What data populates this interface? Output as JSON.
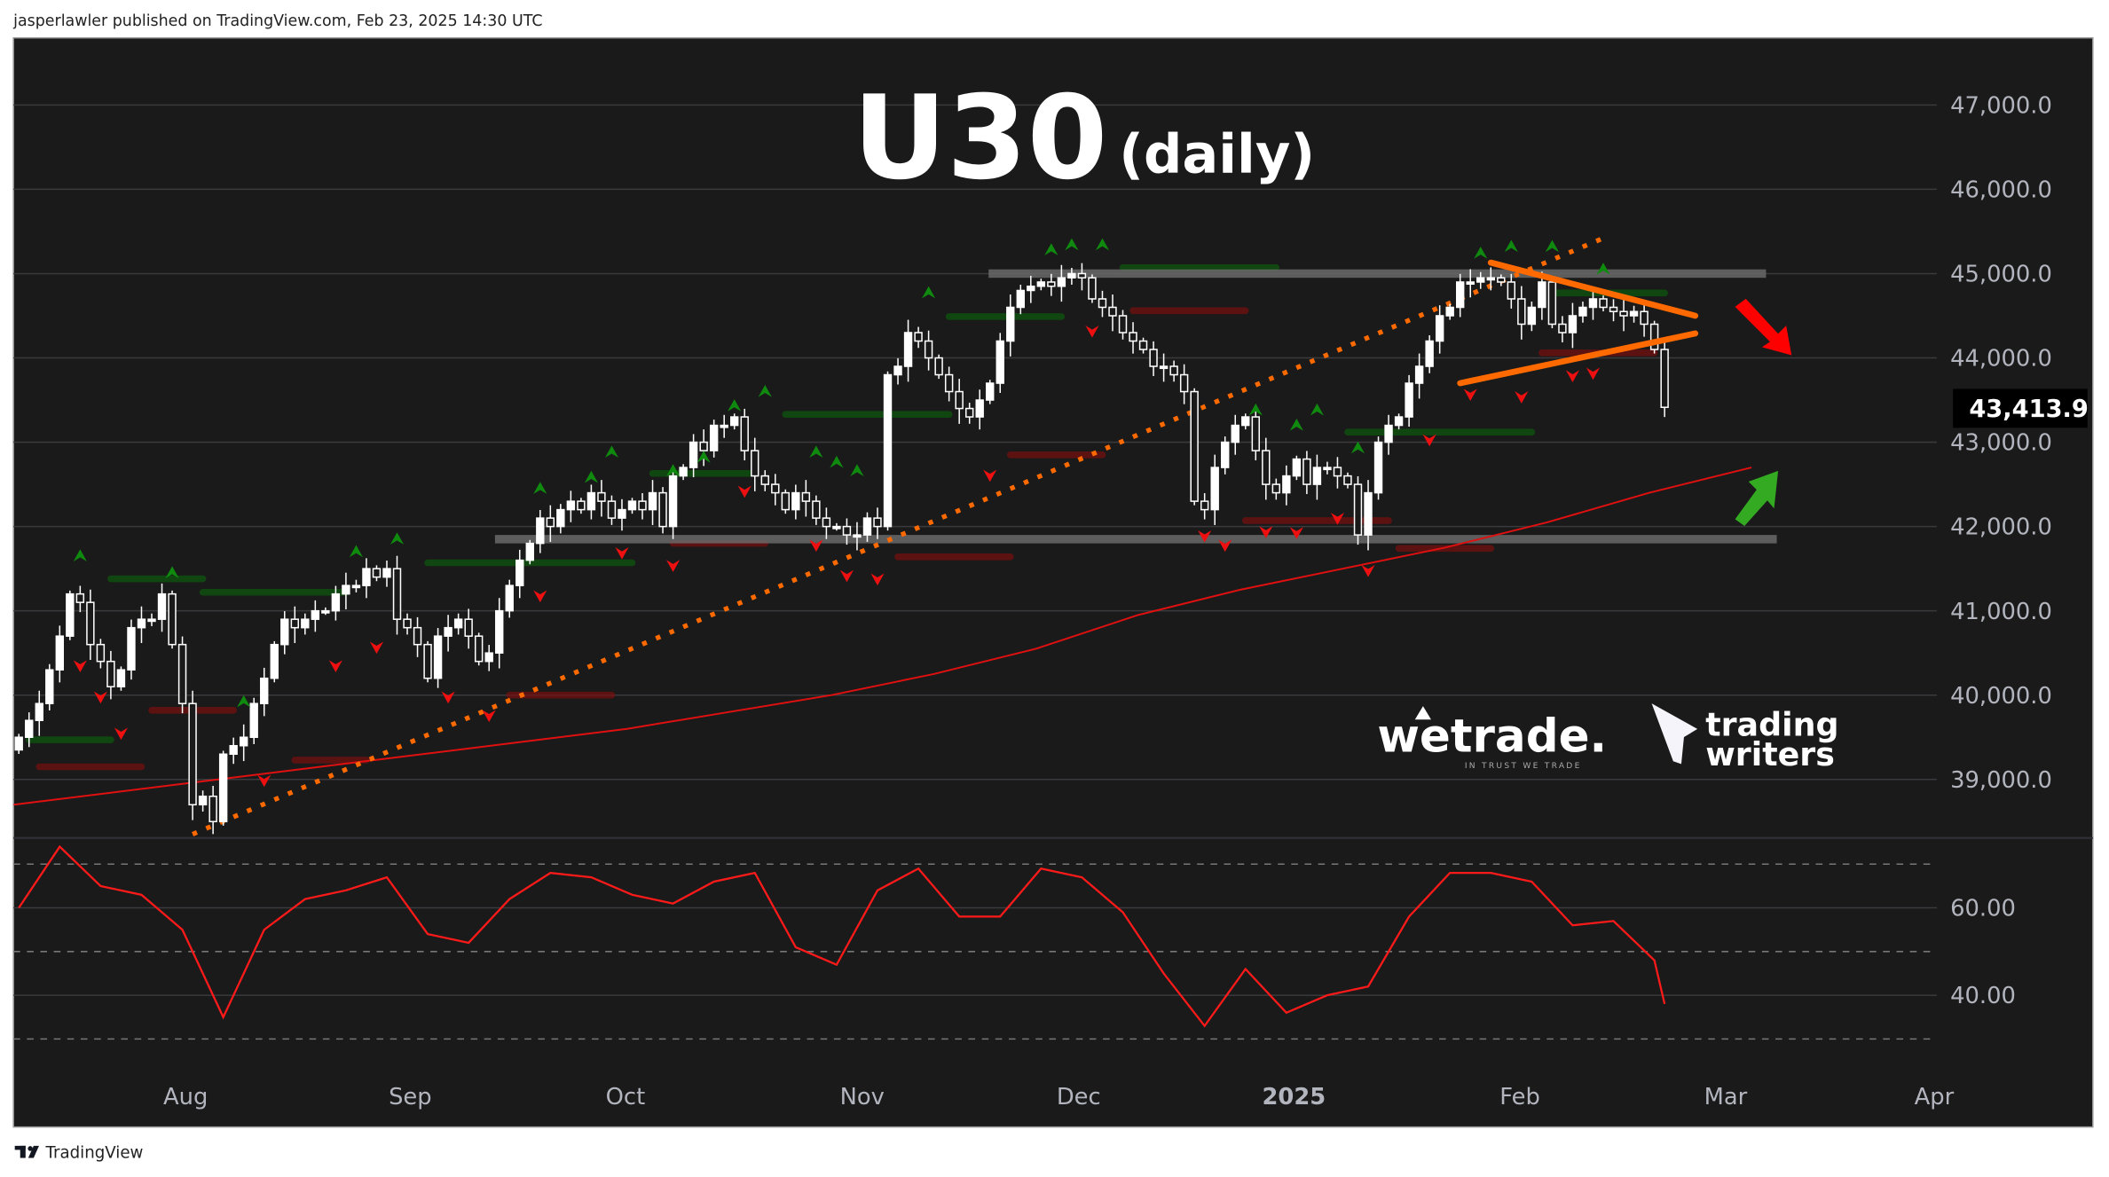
{
  "header": {
    "text": "jasperlawler published on TradingView.com, Feb 23, 2025 14:30 UTC"
  },
  "footer": {
    "brand": "TradingView",
    "icon": "tradingview-logo-icon"
  },
  "title": {
    "symbol": "U30",
    "timeframe": "(daily)"
  },
  "logos": {
    "wetrade": "wetrade.",
    "wetrade_tagline": "IN TRUST WE TRADE",
    "trading_writers_1": "trading",
    "trading_writers_2": "writers"
  },
  "colors": {
    "background": "#1a1a1a",
    "candle": "#ffffff",
    "ma": "#e01010",
    "rsi": "#ff1a1a",
    "trendline": "#ff6a00",
    "zone": "#6a6a6a",
    "arrow_down": "#ff0000",
    "arrow_up": "#33aa22",
    "signal_up": "#0f8a0f",
    "signal_down": "#e01010"
  },
  "chart_data": [
    {
      "type": "candlestick",
      "title": "U30 (daily)",
      "y_ticks": [
        "47,000.0",
        "46,000.0",
        "45,000.0",
        "44,000.0",
        "43,000.0",
        "42,000.0",
        "41,000.0",
        "40,000.0",
        "39,000.0"
      ],
      "y_tick_values": [
        47000,
        46000,
        45000,
        44000,
        43000,
        42000,
        41000,
        40000,
        39000
      ],
      "x_ticks": [
        "Aug",
        "Sep",
        "Oct",
        "Nov",
        "Dec",
        "2025",
        "Feb",
        "Mar",
        "Apr"
      ],
      "ylim": [
        38300,
        47800
      ],
      "last_price": 43413.9,
      "last_price_label": "43,413.9",
      "closes": [
        39500,
        39700,
        39900,
        40300,
        40700,
        41200,
        41100,
        40600,
        40400,
        40100,
        40300,
        40800,
        40900,
        40900,
        41200,
        40600,
        39900,
        38700,
        38800,
        38500,
        39300,
        39400,
        39500,
        39900,
        40200,
        40600,
        40900,
        40800,
        40900,
        41000,
        41000,
        41200,
        41300,
        41300,
        41500,
        41400,
        41500,
        40900,
        40800,
        40600,
        40200,
        40700,
        40800,
        40900,
        40700,
        40400,
        40500,
        41000,
        41300,
        41600,
        41800,
        42100,
        42000,
        42200,
        42300,
        42200,
        42400,
        42300,
        42100,
        42200,
        42300,
        42200,
        42400,
        42000,
        42600,
        42700,
        43000,
        42900,
        43200,
        43200,
        43300,
        42900,
        42600,
        42500,
        42400,
        42200,
        42400,
        42300,
        42100,
        42000,
        42000,
        41900,
        41900,
        42100,
        42000,
        43800,
        43900,
        44300,
        44200,
        44000,
        43800,
        43600,
        43400,
        43300,
        43500,
        43700,
        44200,
        44600,
        44800,
        44850,
        44900,
        44850,
        44950,
        45000,
        44950,
        44700,
        44600,
        44500,
        44300,
        44200,
        44100,
        43900,
        43900,
        43800,
        43600,
        42300,
        42200,
        42700,
        43000,
        43200,
        43300,
        42900,
        42500,
        42400,
        42600,
        42800,
        42500,
        42700,
        42700,
        42600,
        42500,
        41900,
        42400,
        43000,
        43200,
        43300,
        43700,
        43900,
        44200,
        44500,
        44600,
        44900,
        44900,
        44950,
        44950,
        44900,
        44700,
        44400,
        44600,
        44900,
        44400,
        44300,
        44500,
        44600,
        44700,
        44600,
        44550,
        44500,
        44550,
        44400,
        44100,
        43413.9
      ],
      "moving_average_every_10_bars": [
        38700,
        38850,
        39000,
        39150,
        39300,
        39450,
        39600,
        39800,
        40000,
        40250,
        40550,
        40950,
        41250,
        41500,
        41750,
        42050,
        42400,
        42700
      ],
      "resistance_zone": [
        44950,
        45050
      ],
      "support_zone": [
        41800,
        41900
      ],
      "rising_trendline": {
        "from": [
          17,
          38350
        ],
        "to": [
          155,
          45420
        ]
      },
      "triangle_upper": {
        "from": [
          144,
          45130
        ],
        "to": [
          164,
          44500
        ]
      },
      "triangle_lower": {
        "from": [
          141,
          43700
        ],
        "to": [
          164,
          44290
        ]
      },
      "signals_up": [
        [
          6,
          41650
        ],
        [
          15,
          41450
        ],
        [
          22,
          39920
        ],
        [
          33,
          41700
        ],
        [
          37,
          41850
        ],
        [
          51,
          42450
        ],
        [
          56,
          42580
        ],
        [
          58,
          42880
        ],
        [
          64,
          42660
        ],
        [
          67,
          42820
        ],
        [
          70,
          43430
        ],
        [
          73,
          43600
        ],
        [
          78,
          42880
        ],
        [
          80,
          42760
        ],
        [
          82,
          42660
        ],
        [
          89,
          44770
        ],
        [
          101,
          45280
        ],
        [
          103,
          45340
        ],
        [
          106,
          45340
        ],
        [
          121,
          43380
        ],
        [
          125,
          43200
        ],
        [
          127,
          43380
        ],
        [
          131,
          42930
        ],
        [
          143,
          45240
        ],
        [
          146,
          45320
        ],
        [
          150,
          45320
        ],
        [
          155,
          45050
        ]
      ],
      "signals_down": [
        [
          6,
          40350
        ],
        [
          8,
          39980
        ],
        [
          10,
          39550
        ],
        [
          24,
          38990
        ],
        [
          31,
          40350
        ],
        [
          35,
          40570
        ],
        [
          42,
          39980
        ],
        [
          46,
          39760
        ],
        [
          51,
          41180
        ],
        [
          59,
          41690
        ],
        [
          64,
          41540
        ],
        [
          71,
          42420
        ],
        [
          78,
          41780
        ],
        [
          81,
          41420
        ],
        [
          84,
          41380
        ],
        [
          95,
          42610
        ],
        [
          105,
          44320
        ],
        [
          116,
          41890
        ],
        [
          118,
          41780
        ],
        [
          122,
          41940
        ],
        [
          125,
          41930
        ],
        [
          129,
          42100
        ],
        [
          132,
          41480
        ],
        [
          138,
          43030
        ],
        [
          142,
          43570
        ],
        [
          147,
          43540
        ],
        [
          152,
          43790
        ],
        [
          154,
          43820
        ]
      ],
      "levels_green": [
        [
          1,
          9,
          39470
        ],
        [
          9,
          18,
          41380
        ],
        [
          18,
          32,
          41220
        ],
        [
          40,
          60,
          41570
        ],
        [
          62,
          72,
          42630
        ],
        [
          75,
          91,
          43330
        ],
        [
          91,
          102,
          44490
        ],
        [
          108,
          123,
          45070
        ],
        [
          130,
          148,
          43120
        ],
        [
          150,
          161,
          44770
        ]
      ],
      "levels_red": [
        [
          2,
          12,
          39150
        ],
        [
          13,
          21,
          39820
        ],
        [
          27,
          34,
          39230
        ],
        [
          48,
          58,
          40000
        ],
        [
          64,
          73,
          41800
        ],
        [
          86,
          97,
          41640
        ],
        [
          97,
          106,
          42850
        ],
        [
          109,
          120,
          44560
        ],
        [
          120,
          134,
          42070
        ],
        [
          135,
          144,
          41740
        ],
        [
          149,
          160,
          44060
        ]
      ]
    },
    {
      "type": "line",
      "indicator": "RSI",
      "y_ticks": [
        "60.00",
        "40.00"
      ],
      "y_tick_values": [
        60,
        40
      ],
      "dashed_levels": [
        70,
        50,
        30
      ],
      "ylim": [
        22,
        80
      ],
      "values_every_4_bars": [
        60,
        74,
        65,
        63,
        55,
        35,
        55,
        62,
        64,
        67,
        54,
        52,
        62,
        68,
        67,
        63,
        61,
        66,
        68,
        51,
        47,
        64,
        69,
        58,
        58,
        69,
        67,
        59,
        45,
        33,
        46,
        36,
        40,
        42,
        58,
        68,
        68,
        66,
        56,
        57,
        48
      ],
      "last_value": 38
    }
  ]
}
